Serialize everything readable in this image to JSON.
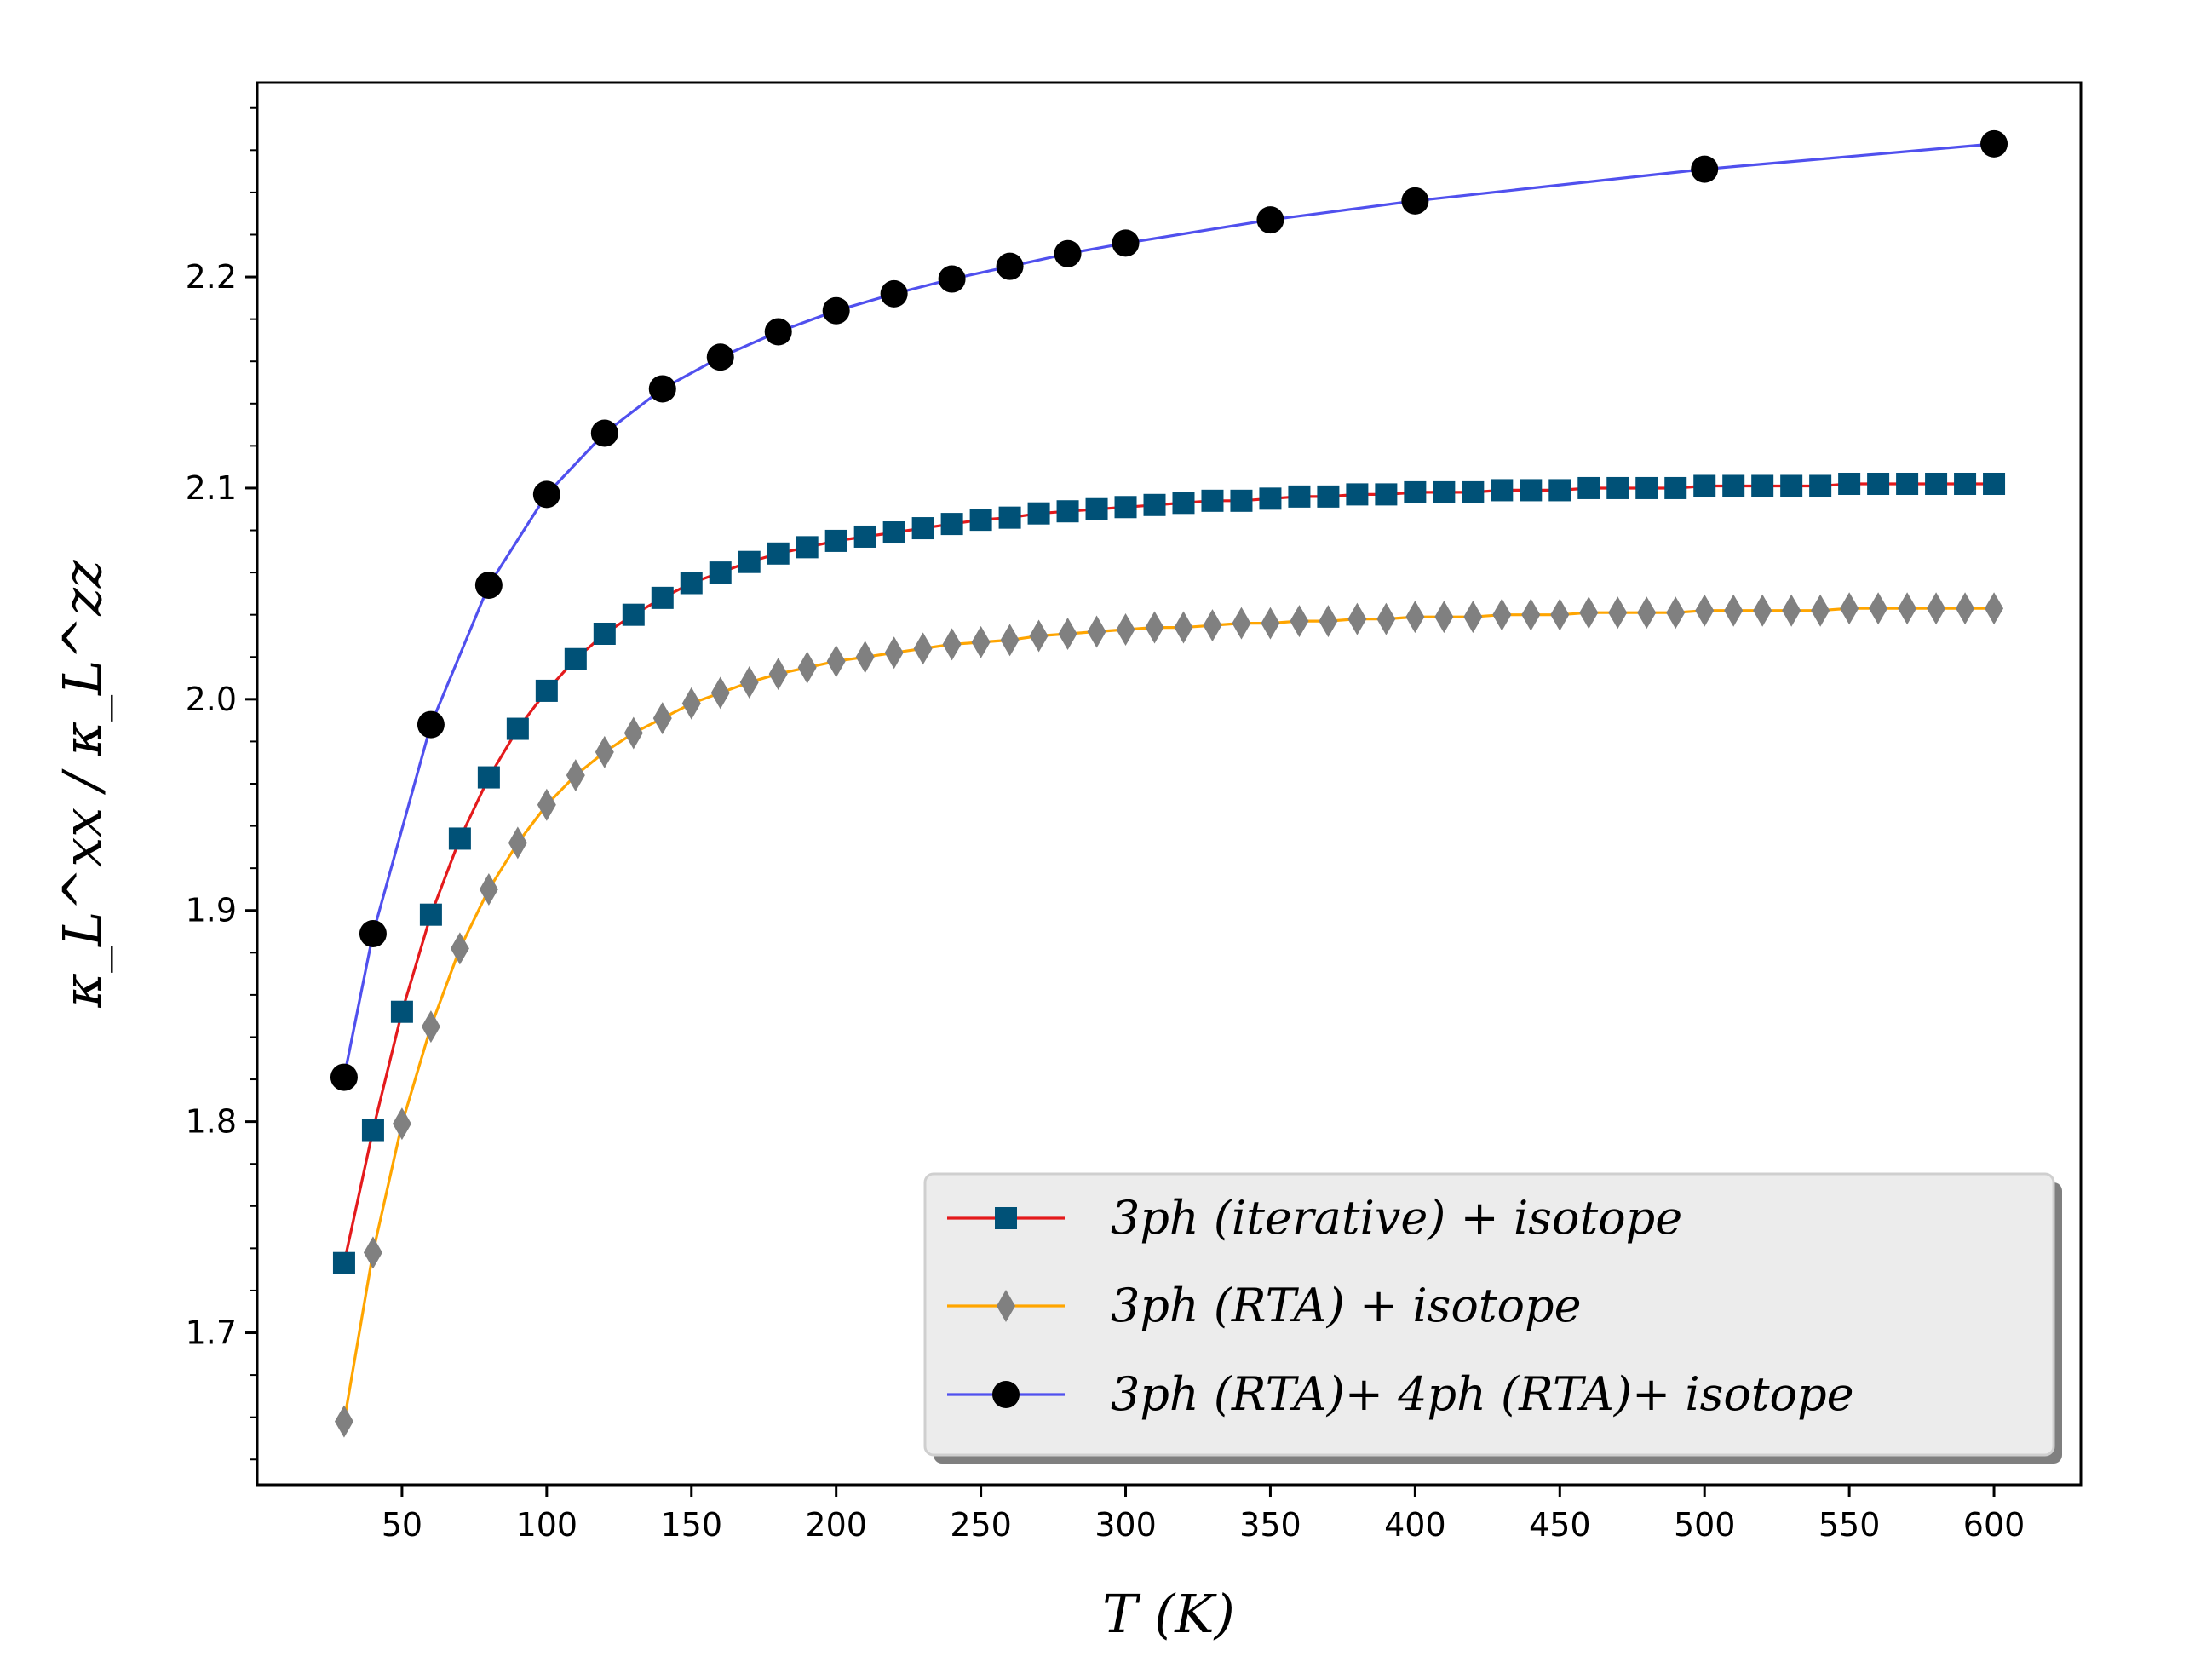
{
  "chart_data": {
    "type": "line",
    "xlabel": "T (K)",
    "ylabel": "κ_L^xx / κ_L^zz",
    "xlim": [
      0,
      630
    ],
    "ylim": [
      1.628,
      2.292
    ],
    "xticks": [
      "50",
      "100",
      "150",
      "200",
      "250",
      "300",
      "350",
      "400",
      "450",
      "500",
      "550",
      "600"
    ],
    "yticks": [
      "1.7",
      "1.8",
      "1.9",
      "2.0",
      "2.1",
      "2.2"
    ],
    "grid": false,
    "legend_position": "lower-right",
    "series": [
      {
        "name": "3ph (iterative) + isotope",
        "line_color": "#e41a1c",
        "marker": "square",
        "marker_color": "#005177",
        "x": [
          30,
          40,
          50,
          60,
          70,
          80,
          90,
          100,
          110,
          120,
          130,
          140,
          150,
          160,
          170,
          180,
          190,
          200,
          210,
          220,
          230,
          240,
          250,
          260,
          270,
          280,
          290,
          300,
          310,
          320,
          330,
          340,
          350,
          360,
          370,
          380,
          390,
          400,
          410,
          420,
          430,
          440,
          450,
          460,
          470,
          480,
          490,
          500,
          510,
          520,
          530,
          540,
          550,
          560,
          570,
          580,
          590,
          600
        ],
        "y": [
          1.733,
          1.796,
          1.852,
          1.898,
          1.934,
          1.963,
          1.986,
          2.004,
          2.019,
          2.031,
          2.04,
          2.048,
          2.055,
          2.06,
          2.065,
          2.069,
          2.072,
          2.075,
          2.077,
          2.079,
          2.081,
          2.083,
          2.085,
          2.086,
          2.088,
          2.089,
          2.09,
          2.091,
          2.092,
          2.093,
          2.094,
          2.094,
          2.095,
          2.096,
          2.096,
          2.097,
          2.097,
          2.098,
          2.098,
          2.098,
          2.099,
          2.099,
          2.099,
          2.1,
          2.1,
          2.1,
          2.1,
          2.101,
          2.101,
          2.101,
          2.101,
          2.101,
          2.102,
          2.102,
          2.102,
          2.102,
          2.102,
          2.102
        ]
      },
      {
        "name": "3ph (RTA) + isotope",
        "line_color": "#ffa500",
        "marker": "thin-diamond",
        "marker_color": "#808080",
        "x": [
          30,
          40,
          50,
          60,
          70,
          80,
          90,
          100,
          110,
          120,
          130,
          140,
          150,
          160,
          170,
          180,
          190,
          200,
          210,
          220,
          230,
          240,
          250,
          260,
          270,
          280,
          290,
          300,
          310,
          320,
          330,
          340,
          350,
          360,
          370,
          380,
          390,
          400,
          410,
          420,
          430,
          440,
          450,
          460,
          470,
          480,
          490,
          500,
          510,
          520,
          530,
          540,
          550,
          560,
          570,
          580,
          590,
          600
        ],
        "y": [
          1.658,
          1.738,
          1.799,
          1.845,
          1.882,
          1.91,
          1.932,
          1.95,
          1.964,
          1.975,
          1.984,
          1.991,
          1.998,
          2.003,
          2.008,
          2.012,
          2.015,
          2.018,
          2.02,
          2.022,
          2.024,
          2.026,
          2.027,
          2.028,
          2.03,
          2.031,
          2.032,
          2.033,
          2.034,
          2.034,
          2.035,
          2.036,
          2.036,
          2.037,
          2.037,
          2.038,
          2.038,
          2.039,
          2.039,
          2.039,
          2.04,
          2.04,
          2.04,
          2.041,
          2.041,
          2.041,
          2.041,
          2.042,
          2.042,
          2.042,
          2.042,
          2.042,
          2.043,
          2.043,
          2.043,
          2.043,
          2.043,
          2.043
        ]
      },
      {
        "name": "3ph (RTA)+ 4ph (RTA)+ isotope",
        "line_color": "#5050ee",
        "marker": "circle",
        "marker_color": "#000000",
        "x": [
          30,
          40,
          60,
          80,
          100,
          120,
          140,
          160,
          180,
          200,
          220,
          240,
          260,
          280,
          300,
          350,
          400,
          500,
          600
        ],
        "y": [
          1.821,
          1.889,
          1.988,
          2.054,
          2.097,
          2.126,
          2.147,
          2.162,
          2.174,
          2.184,
          2.192,
          2.199,
          2.205,
          2.211,
          2.216,
          2.227,
          2.236,
          2.251,
          2.263
        ]
      }
    ]
  }
}
